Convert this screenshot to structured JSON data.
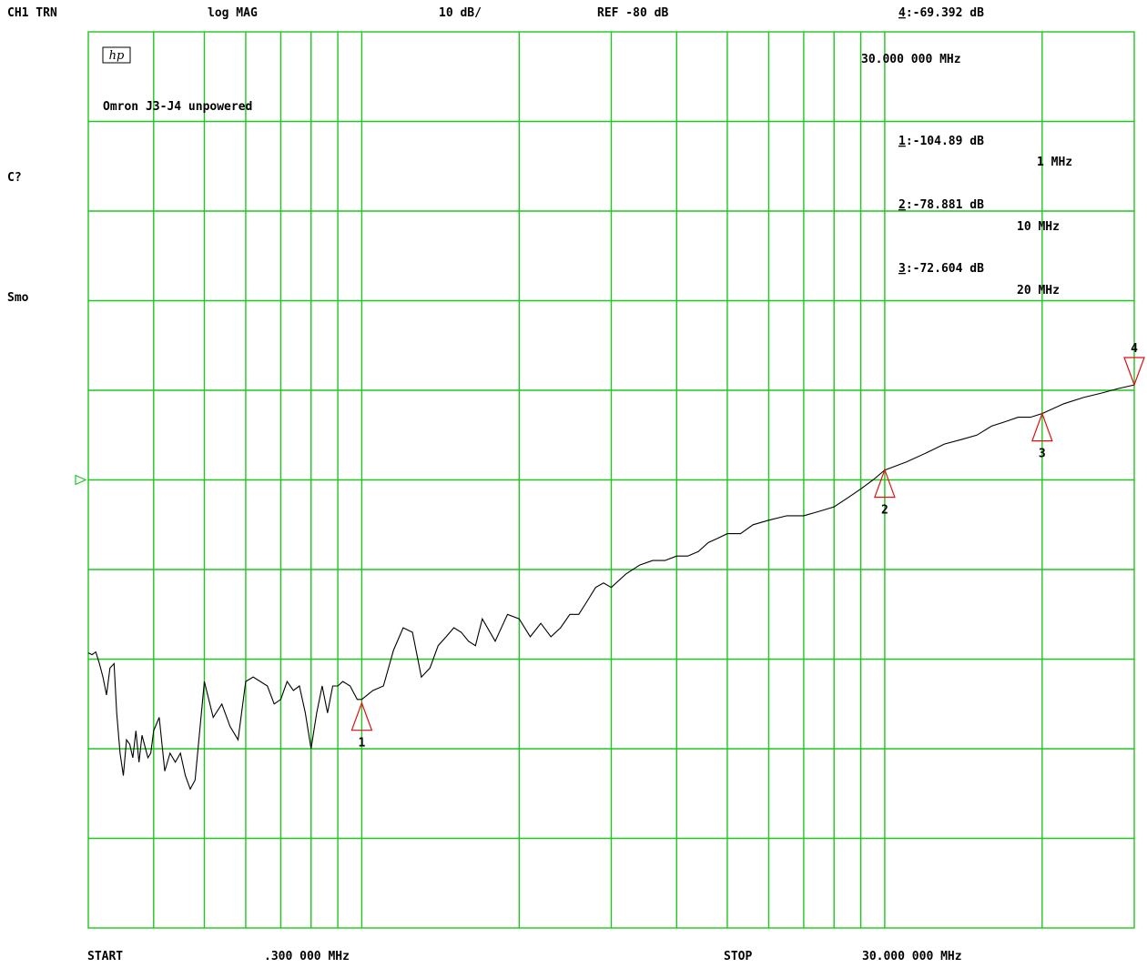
{
  "header": {
    "channel": "CH1 TRN",
    "format": "log MAG",
    "scale": "10 dB/",
    "reference": "REF -80 dB",
    "active_marker_prefix": "4",
    "active_marker_value": ":-69.392 dB",
    "active_marker_freq": "30.000 000 MHz"
  },
  "side_labels": {
    "correction": "C?",
    "smoothing": "Smo"
  },
  "logo": "hp",
  "title": "Omron J3-J4 unpowered",
  "footer": {
    "start_label": "START",
    "start_value": ".300 000 MHz",
    "stop_label": "STOP",
    "stop_value": "30.000 000 MHz"
  },
  "marker_readouts": [
    {
      "num": "1",
      "value": ":-104.89 dB",
      "freq": "1 MHz"
    },
    {
      "num": "2",
      "value": ":-78.881 dB",
      "freq": "10 MHz"
    },
    {
      "num": "3",
      "value": ":-72.604 dB",
      "freq": "20 MHz"
    }
  ],
  "colors": {
    "grid": "#1ec81e",
    "trace": "#000000",
    "marker": "#e01010",
    "reference_arrow": "#1ec81e"
  },
  "chart_data": {
    "type": "line",
    "x_scale": "log",
    "x_unit": "MHz",
    "xlim": [
      0.3,
      30
    ],
    "ylim": [
      -130,
      -30
    ],
    "y_unit": "dB",
    "reference_level": -80,
    "grid": true,
    "series": [
      {
        "x": [
          0.3,
          0.305,
          0.31,
          0.315,
          0.32,
          0.325,
          0.33,
          0.336,
          0.34,
          0.345,
          0.35,
          0.355,
          0.36,
          0.365,
          0.37,
          0.375,
          0.38,
          0.39,
          0.395,
          0.4,
          0.41,
          0.42,
          0.43,
          0.44,
          0.45,
          0.46,
          0.47,
          0.48,
          0.5,
          0.52,
          0.54,
          0.56,
          0.58,
          0.6,
          0.62,
          0.64,
          0.66,
          0.68,
          0.7,
          0.72,
          0.74,
          0.76,
          0.78,
          0.8,
          0.82,
          0.84,
          0.86,
          0.88,
          0.9,
          0.92,
          0.95,
          0.98,
          1.0,
          1.05,
          1.1,
          1.15,
          1.2,
          1.25,
          1.3,
          1.35,
          1.4,
          1.45,
          1.5,
          1.55,
          1.6,
          1.65,
          1.7,
          1.8,
          1.9,
          2.0,
          2.1,
          2.2,
          2.3,
          2.4,
          2.5,
          2.6,
          2.7,
          2.8,
          2.9,
          3.0,
          3.2,
          3.4,
          3.6,
          3.8,
          4.0,
          4.2,
          4.4,
          4.6,
          4.8,
          5.0,
          5.3,
          5.6,
          6.0,
          6.5,
          7.0,
          7.5,
          8.0,
          8.5,
          9.0,
          9.5,
          10,
          11,
          12,
          13,
          14,
          15,
          16,
          17,
          18,
          19,
          20,
          22,
          24,
          26,
          28,
          30
        ],
        "y": [
          -99.3,
          -99.5,
          -99.2,
          -100.5,
          -102.0,
          -104.0,
          -101.0,
          -100.5,
          -106.0,
          -110.5,
          -113.0,
          -109.0,
          -109.5,
          -111.0,
          -108.0,
          -111.5,
          -108.5,
          -111.0,
          -110.5,
          -108.0,
          -106.5,
          -112.5,
          -110.5,
          -111.5,
          -110.5,
          -113.0,
          -114.5,
          -113.5,
          -102.5,
          -106.5,
          -105.0,
          -107.5,
          -109.0,
          -102.5,
          -102.0,
          -102.5,
          -103.0,
          -105.0,
          -104.5,
          -102.5,
          -103.5,
          -103.0,
          -106.0,
          -110.0,
          -106.0,
          -103.0,
          -106.0,
          -103.0,
          -103.0,
          -102.5,
          -103.0,
          -104.5,
          -104.5,
          -103.5,
          -103.0,
          -99.0,
          -96.5,
          -97.0,
          -102.0,
          -101.0,
          -98.5,
          -97.5,
          -96.5,
          -97.0,
          -98.0,
          -98.5,
          -95.5,
          -98.0,
          -95.0,
          -95.5,
          -97.5,
          -96.0,
          -97.5,
          -96.5,
          -95.0,
          -95.0,
          -93.5,
          -92.0,
          -91.5,
          -92.0,
          -90.5,
          -89.5,
          -89.0,
          -89.0,
          -88.5,
          -88.5,
          -88.0,
          -87.0,
          -86.5,
          -86.0,
          -86.0,
          -85.0,
          -84.5,
          -84.0,
          -84.0,
          -83.5,
          -83.0,
          -82.0,
          -81.0,
          -80.0,
          -78.9,
          -78.0,
          -77.0,
          -76.0,
          -75.5,
          -75.0,
          -74.0,
          -73.5,
          -73.0,
          -73.0,
          -72.6,
          -71.5,
          -70.8,
          -70.3,
          -69.8,
          -69.4
        ]
      }
    ],
    "markers": [
      {
        "label": "1",
        "x": 1,
        "y": -104.89,
        "orientation": "up"
      },
      {
        "label": "2",
        "x": 10,
        "y": -78.881,
        "orientation": "up"
      },
      {
        "label": "3",
        "x": 20,
        "y": -72.604,
        "orientation": "up"
      },
      {
        "label": "4",
        "x": 30,
        "y": -69.392,
        "orientation": "down"
      }
    ]
  }
}
